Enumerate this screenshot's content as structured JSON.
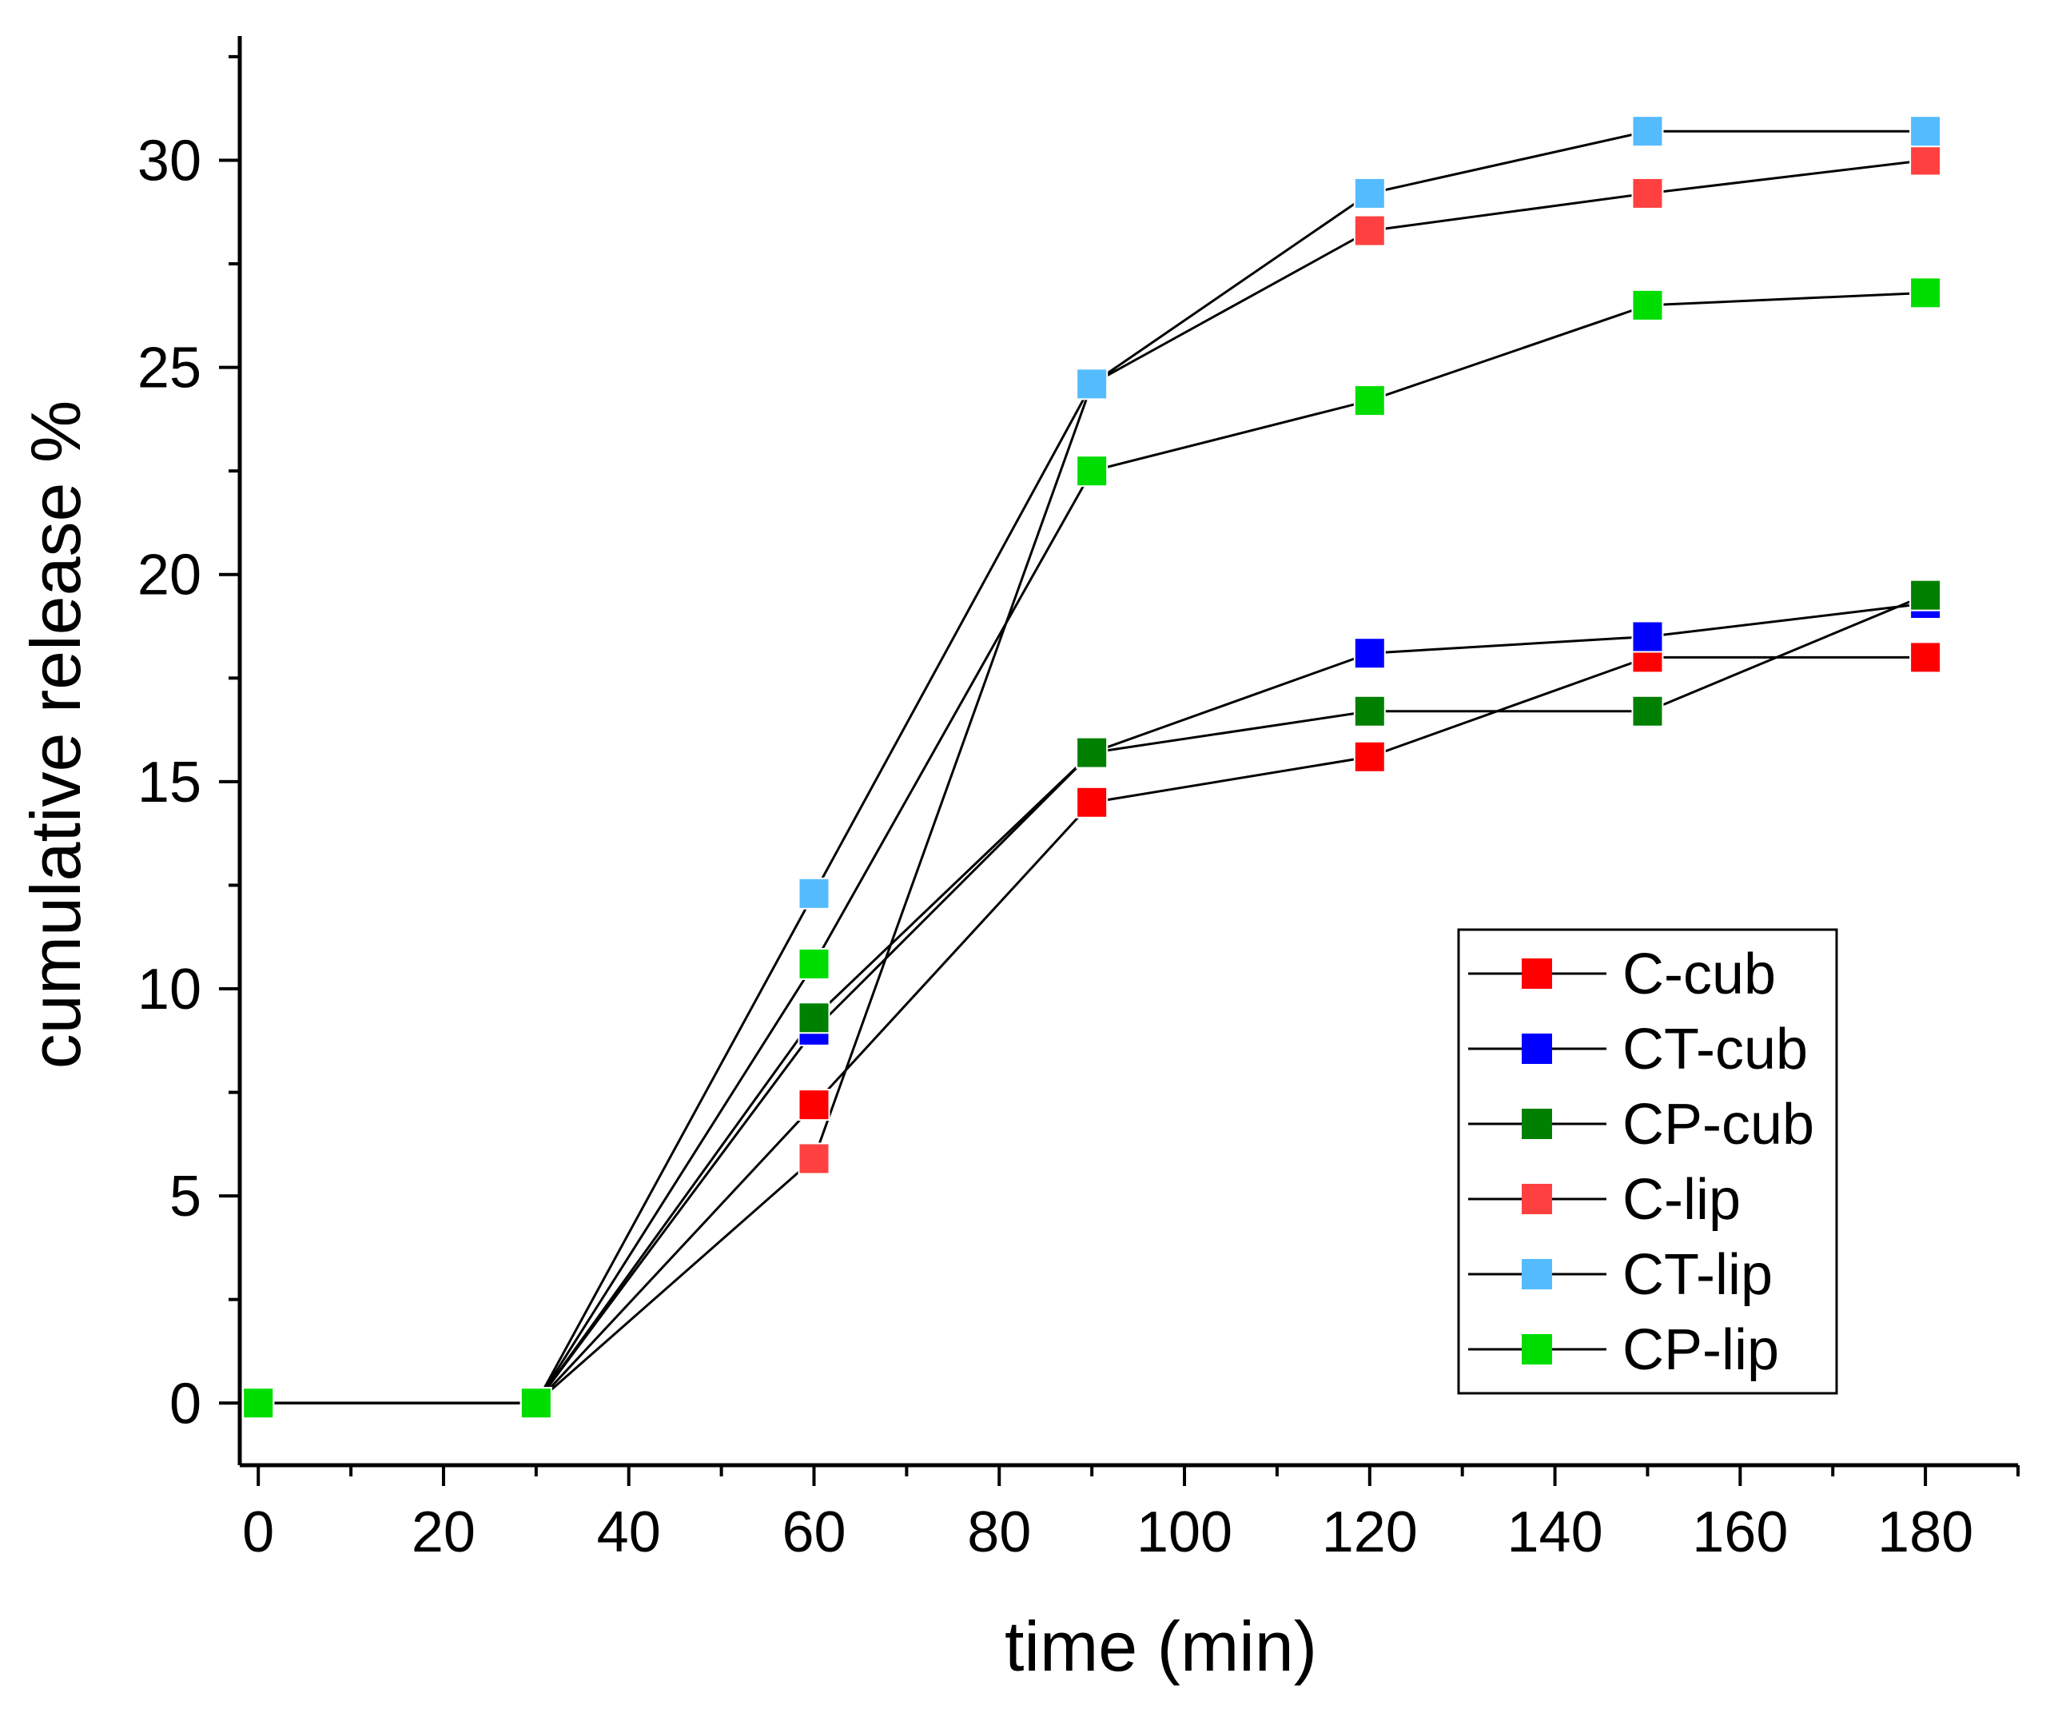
{
  "chart_data": {
    "type": "line",
    "title": "",
    "xlabel": "time (min)",
    "ylabel": "cumulative release %",
    "xlim": [
      -2,
      190
    ],
    "ylim": [
      -1.5,
      33
    ],
    "xticks": [
      0,
      20,
      40,
      60,
      80,
      100,
      120,
      140,
      160,
      180
    ],
    "xtick_labels": [
      "0",
      "20",
      "40",
      "60",
      "80",
      "100",
      "120",
      "140",
      "160",
      "180"
    ],
    "yticks": [
      0,
      5,
      10,
      15,
      20,
      25,
      30
    ],
    "ytick_labels": [
      "0",
      "5",
      "10",
      "15",
      "20",
      "25",
      "30"
    ],
    "grid": false,
    "legend_position": "bottom-right",
    "x": [
      0,
      30,
      60,
      90,
      120,
      150,
      180
    ],
    "series": [
      {
        "name": "C-cub",
        "color": "#ff0000",
        "values": [
          0,
          0,
          7.2,
          14.5,
          15.6,
          18.0,
          18.0
        ]
      },
      {
        "name": "CT-cub",
        "color": "#0000ff",
        "values": [
          0,
          0,
          9.0,
          15.7,
          18.1,
          18.5,
          19.3
        ]
      },
      {
        "name": "CP-cub",
        "color": "#008000",
        "values": [
          0,
          0,
          9.3,
          15.7,
          16.7,
          16.7,
          19.5
        ]
      },
      {
        "name": "C-lip",
        "color": "#ff4040",
        "values": [
          0,
          0,
          5.9,
          24.6,
          28.3,
          29.2,
          30.0
        ]
      },
      {
        "name": "CT-lip",
        "color": "#55bbff",
        "values": [
          0,
          0,
          12.3,
          24.6,
          29.2,
          30.7,
          30.7
        ]
      },
      {
        "name": "CP-lip",
        "color": "#00dd00",
        "values": [
          0,
          0,
          10.6,
          22.5,
          24.2,
          26.5,
          26.8
        ]
      }
    ]
  }
}
